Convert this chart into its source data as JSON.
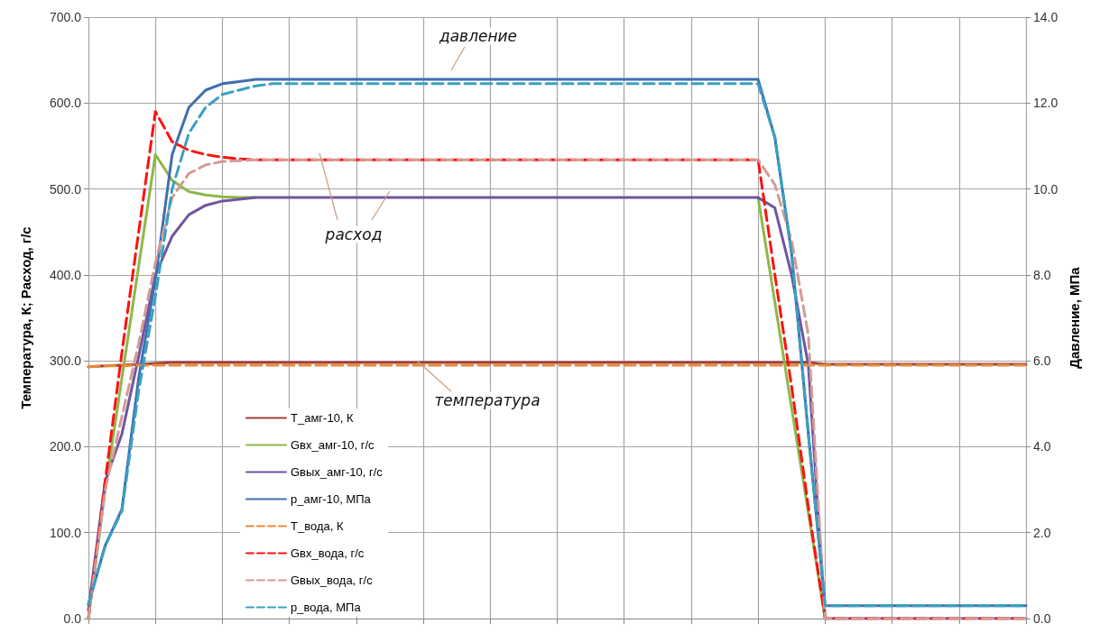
{
  "chart_data": {
    "type": "line",
    "ylabel": "Температура, К; Расход, г/с",
    "y2label": "Давление, МПа",
    "categories": [
      null,
      null,
      null,
      null,
      null,
      null,
      null,
      null,
      null,
      null,
      null,
      null,
      null,
      null,
      null,
      null,
      null,
      null,
      null,
      null,
      null,
      null,
      null,
      null,
      null,
      null,
      null,
      null,
      null,
      null,
      null,
      null,
      null,
      null,
      null,
      null,
      null,
      null,
      null,
      null,
      null,
      null,
      null,
      null,
      null,
      null,
      null,
      null,
      null,
      null,
      null,
      null,
      null,
      null,
      null,
      null,
      null
    ],
    "ylim": [
      0,
      700
    ],
    "yticks": [
      {
        "value": 0,
        "label": "0.0"
      },
      {
        "value": 100,
        "label": "100.0"
      },
      {
        "value": 200,
        "label": "200.0"
      },
      {
        "value": 300,
        "label": "300.0"
      },
      {
        "value": 400,
        "label": "400.0"
      },
      {
        "value": 500,
        "label": "500.0"
      },
      {
        "value": 600,
        "label": "600.0"
      },
      {
        "value": 700,
        "label": "700.0"
      }
    ],
    "y2lim": [
      0,
      14
    ],
    "y2ticks": [
      {
        "value": 0,
        "label": "0.0"
      },
      {
        "value": 2,
        "label": "2.0"
      },
      {
        "value": 4,
        "label": "4.0"
      },
      {
        "value": 6,
        "label": "6.0"
      },
      {
        "value": 8,
        "label": "8.0"
      },
      {
        "value": 10,
        "label": "10.0"
      },
      {
        "value": 12,
        "label": "12.0"
      },
      {
        "value": 14,
        "label": "14.0"
      }
    ],
    "grid": true,
    "legend": "bottom left",
    "marker": "none",
    "series": [
      {
        "name": "T_амг-10, К",
        "color": "#a0403c",
        "line_style": "solid",
        "values": [
          293,
          294,
          295,
          296,
          297,
          298,
          298,
          298,
          298,
          298,
          298,
          298,
          298,
          298,
          298,
          298,
          298,
          298,
          298,
          298,
          298,
          298,
          298,
          298,
          298,
          298,
          298,
          298,
          298,
          298,
          298,
          298,
          298,
          298,
          298,
          298,
          298,
          298,
          298,
          298,
          298,
          298,
          298,
          298,
          296,
          296,
          296,
          296,
          296,
          296,
          296,
          296,
          296,
          296,
          296,
          296,
          296
        ]
      },
      {
        "name": "Gвх_амг-10, г/с",
        "color": "#8cb84a",
        "line_style": "solid",
        "values": [
          0,
          150,
          280,
          410,
          540,
          510,
          497,
          493,
          491,
          490,
          490,
          null,
          null,
          null,
          null,
          null,
          null,
          null,
          null,
          null,
          null,
          null,
          null,
          null,
          null,
          null,
          null,
          null,
          null,
          null,
          null,
          null,
          null,
          null,
          null,
          null,
          null,
          null,
          null,
          null,
          490,
          368,
          245,
          123,
          0,
          null,
          null,
          null,
          null,
          null,
          null,
          null,
          null,
          null,
          null,
          null,
          null
        ]
      },
      {
        "name": "Gвых_амг-10, г/с",
        "color": "#7055a0",
        "line_style": "solid",
        "values": [
          10,
          160,
          215,
          305,
          400,
          445,
          470,
          481,
          486,
          488,
          490,
          490,
          490,
          490,
          490,
          490,
          490,
          490,
          490,
          490,
          490,
          490,
          490,
          490,
          490,
          490,
          490,
          490,
          490,
          490,
          490,
          490,
          490,
          490,
          490,
          490,
          490,
          490,
          490,
          490,
          490,
          478,
          400,
          295,
          0,
          0,
          0,
          0,
          0,
          0,
          0,
          0,
          0,
          0,
          0,
          0,
          0
        ]
      },
      {
        "name": "p_амг-10, МПа",
        "color": "#3f6fb0",
        "line_style": "solid",
        "axis": "y2",
        "values": [
          0.33,
          1.7,
          2.55,
          5.6,
          7.9,
          10.8,
          11.9,
          12.3,
          12.45,
          12.5,
          12.55,
          12.55,
          12.55,
          12.55,
          12.55,
          12.55,
          12.55,
          12.55,
          12.55,
          12.55,
          12.55,
          12.55,
          12.55,
          12.55,
          12.55,
          12.55,
          12.55,
          12.55,
          12.55,
          12.55,
          12.55,
          12.55,
          12.55,
          12.55,
          12.55,
          12.55,
          12.55,
          12.55,
          12.55,
          12.55,
          12.55,
          11.2,
          8.5,
          4.3,
          0.3,
          0.3,
          0.3,
          0.3,
          0.3,
          0.3,
          0.3,
          0.3,
          0.3,
          0.3,
          0.3,
          0.3,
          0.3
        ]
      },
      {
        "name": "T_вода, К",
        "color": "#e88a3a",
        "line_style": "dashed",
        "values": [
          293,
          294,
          294,
          295,
          295,
          295,
          295,
          295,
          295,
          295,
          295,
          295,
          295,
          295,
          295,
          295,
          295,
          295,
          295,
          295,
          295,
          295,
          295,
          295,
          295,
          295,
          295,
          295,
          295,
          295,
          295,
          295,
          295,
          295,
          295,
          295,
          295,
          295,
          295,
          295,
          295,
          295,
          295,
          295,
          295,
          295,
          295,
          295,
          295,
          295,
          295,
          295,
          295,
          295,
          295,
          295,
          295
        ]
      },
      {
        "name": "Gвх_вода, г/с",
        "color": "#ff1010",
        "line_style": "dashed",
        "values": [
          0,
          160,
          310,
          450,
          590,
          555,
          545,
          540,
          537,
          535,
          534,
          534,
          534,
          534,
          534,
          534,
          534,
          534,
          534,
          534,
          534,
          534,
          534,
          534,
          534,
          534,
          534,
          534,
          534,
          534,
          534,
          534,
          534,
          534,
          534,
          534,
          534,
          534,
          534,
          534,
          534,
          400,
          270,
          130,
          0,
          0,
          0,
          0,
          0,
          0,
          0,
          0,
          0,
          0,
          0,
          0,
          0
        ]
      },
      {
        "name": "Gвых_вода, г/с",
        "color": "#d49a96",
        "line_style": "dashed",
        "values": [
          0,
          150,
          235,
          320,
          414,
          490,
          518,
          528,
          532,
          533,
          534,
          534,
          534,
          534,
          534,
          534,
          534,
          534,
          534,
          534,
          534,
          534,
          534,
          534,
          534,
          534,
          534,
          534,
          534,
          534,
          534,
          534,
          534,
          534,
          534,
          534,
          534,
          534,
          534,
          534,
          534,
          505,
          440,
          330,
          0,
          0,
          0,
          0,
          0,
          0,
          0,
          0,
          0,
          0,
          0,
          0,
          0
        ]
      },
      {
        "name": "p_вода, МПа",
        "color": "#3aa0c0",
        "line_style": "dashed",
        "axis": "y2",
        "values": [
          0.33,
          1.7,
          2.5,
          5.3,
          7.5,
          10.0,
          11.3,
          11.9,
          12.2,
          12.3,
          12.4,
          12.45,
          12.45,
          12.45,
          12.45,
          12.45,
          12.45,
          12.45,
          12.45,
          12.45,
          12.45,
          12.45,
          12.45,
          12.45,
          12.45,
          12.45,
          12.45,
          12.45,
          12.45,
          12.45,
          12.45,
          12.45,
          12.45,
          12.45,
          12.45,
          12.45,
          12.45,
          12.45,
          12.45,
          12.45,
          12.45,
          11.2,
          8.5,
          4.3,
          0.3,
          0.3,
          0.3,
          0.3,
          0.3,
          0.3,
          0.3,
          0.3,
          0.3,
          0.3,
          0.3,
          0.3,
          0.3
        ]
      }
    ],
    "annotations": [
      "давление",
      "расход",
      "температура"
    ]
  }
}
